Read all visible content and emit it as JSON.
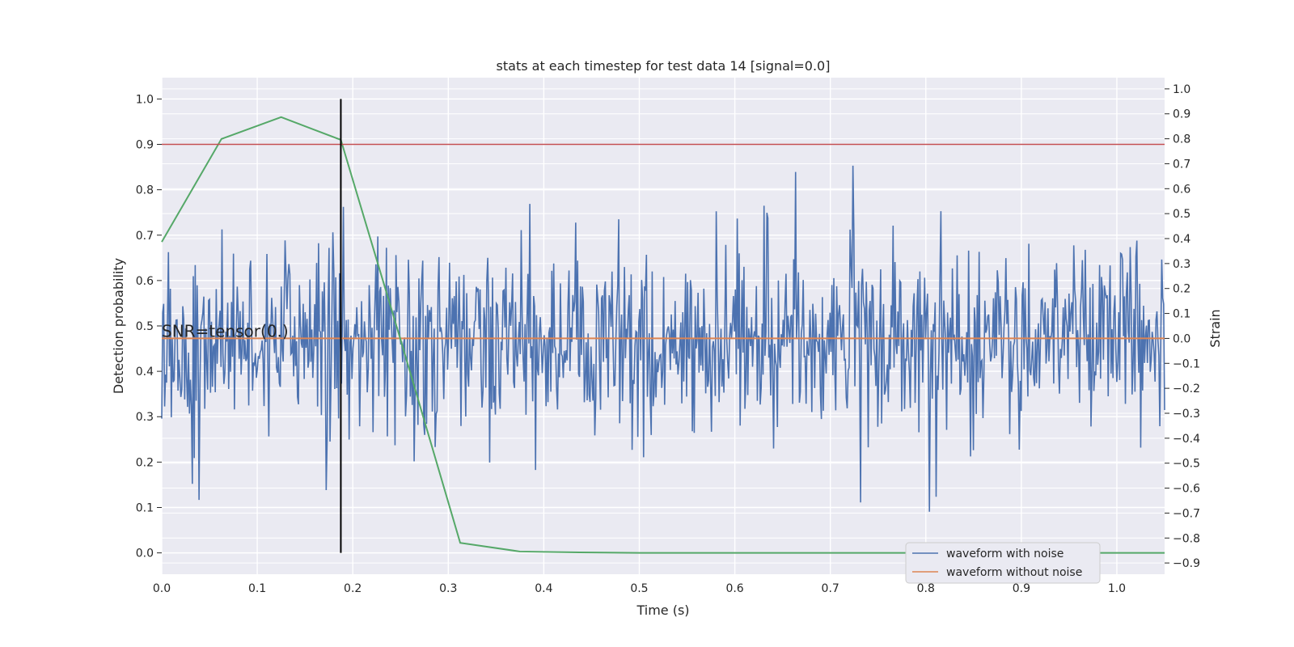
{
  "chart_data": {
    "type": "line",
    "title": "stats at each timestep for test data 14 [signal=0.0]",
    "xlabel": "Time (s)",
    "ylabel_left": "Detection probability",
    "ylabel_right": "Strain",
    "xlim": [
      0.0,
      1.05
    ],
    "ylim_left": [
      -0.047,
      1.047
    ],
    "ylim_right": [
      -0.945,
      1.045
    ],
    "x_ticks": [
      0.0,
      0.1,
      0.2,
      0.3,
      0.4,
      0.5,
      0.6,
      0.7,
      0.8,
      0.9,
      1.0
    ],
    "x_tick_labels": [
      "0.0",
      "0.1",
      "0.2",
      "0.3",
      "0.4",
      "0.5",
      "0.6",
      "0.7",
      "0.8",
      "0.9",
      "1.0"
    ],
    "y_left_ticks": [
      0.0,
      0.1,
      0.2,
      0.3,
      0.4,
      0.5,
      0.6,
      0.7,
      0.8,
      0.9,
      1.0
    ],
    "y_left_tick_labels": [
      "0.0",
      "0.1",
      "0.2",
      "0.3",
      "0.4",
      "0.5",
      "0.6",
      "0.7",
      "0.8",
      "0.9",
      "1.0"
    ],
    "y_right_ticks": [
      -0.9,
      -0.8,
      -0.7,
      -0.6,
      -0.5,
      -0.4,
      -0.3,
      -0.2,
      -0.1,
      0.0,
      0.1,
      0.2,
      0.3,
      0.4,
      0.5,
      0.6,
      0.7,
      0.8,
      0.9,
      1.0
    ],
    "y_right_tick_labels": [
      "−0.9",
      "−0.8",
      "−0.7",
      "−0.6",
      "−0.5",
      "−0.4",
      "−0.3",
      "−0.2",
      "−0.1",
      "0.0",
      "0.1",
      "0.2",
      "0.3",
      "0.4",
      "0.5",
      "0.6",
      "0.7",
      "0.8",
      "0.9",
      "1.0"
    ],
    "grid": true,
    "background": "#eaeaf2",
    "series": [
      {
        "name": "waveform with noise",
        "axis": "right",
        "color": "#4c72b0",
        "noise": {
          "n": 1050,
          "mean": 0.0,
          "std": 0.2,
          "x_start": 0.0,
          "x_end": 1.05
        }
      },
      {
        "name": "waveform without noise",
        "axis": "right",
        "color": "#dd8452",
        "x": [
          0.0,
          1.05
        ],
        "y": [
          0.0,
          0.0
        ]
      },
      {
        "axis": "left",
        "color": "#55a868",
        "x": [
          0.0,
          0.0625,
          0.125,
          0.1875,
          0.25,
          0.3125,
          0.375,
          0.4375,
          0.5,
          0.5625,
          0.625,
          0.6875,
          0.75,
          0.8125,
          0.875,
          0.9375,
          1.0,
          1.05
        ],
        "y": [
          0.685,
          0.912,
          0.96,
          0.91,
          0.47,
          0.022,
          0.003,
          0.001,
          0.0,
          0.0,
          0.0,
          0.0,
          0.0,
          0.0,
          0.0,
          0.0,
          0.0,
          0.0
        ]
      }
    ],
    "threshold_line": {
      "axis": "left",
      "y": 0.9,
      "color": "#c44e52"
    },
    "vertical_marker": {
      "axis": "left",
      "x": 0.1875,
      "y_range": [
        0.0,
        1.0
      ],
      "color": "#000000"
    },
    "annotation": {
      "text": "SNR=tensor(0.)",
      "x": 0.0,
      "y_right": 0.0
    },
    "legend": {
      "position": "lower-right",
      "entries": [
        "waveform with noise",
        "waveform without noise"
      ]
    }
  }
}
